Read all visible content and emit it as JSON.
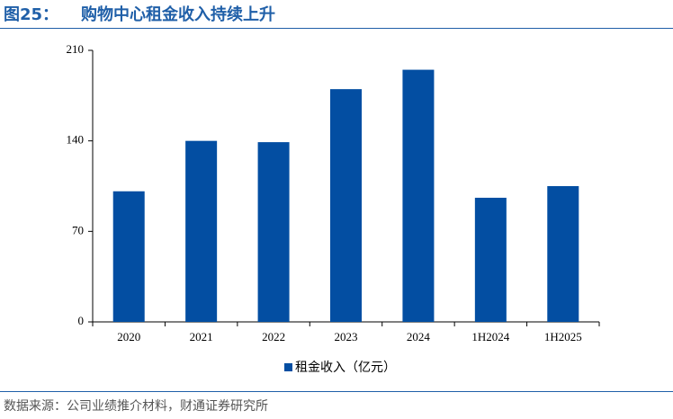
{
  "figure_label": "图25：",
  "source": "数据来源：公司业绩推介材料，财通证券研究所",
  "chart_data": {
    "type": "bar",
    "title": "购物中心租金收入持续上升",
    "categories": [
      "2020",
      "2021",
      "2022",
      "2023",
      "2024",
      "1H2024",
      "1H2025"
    ],
    "series": [
      {
        "name": "租金收入（亿元）",
        "color": "#034ea2",
        "values": [
          101,
          140,
          139,
          180,
          195,
          96,
          105
        ]
      }
    ],
    "ylim": [
      0,
      210
    ],
    "yticks": [
      0,
      70,
      140,
      210
    ],
    "grid": false,
    "legend": "bottom"
  }
}
